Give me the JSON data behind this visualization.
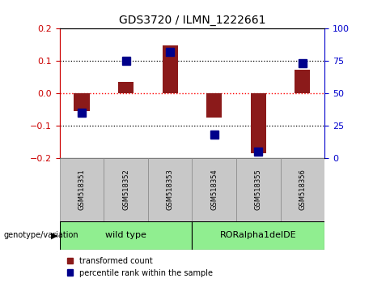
{
  "title": "GDS3720 / ILMN_1222661",
  "samples": [
    "GSM518351",
    "GSM518352",
    "GSM518353",
    "GSM518354",
    "GSM518355",
    "GSM518356"
  ],
  "red_values": [
    -0.055,
    0.035,
    0.148,
    -0.075,
    -0.185,
    0.072
  ],
  "blue_values": [
    35,
    75,
    82,
    18,
    5,
    73
  ],
  "ylim_left": [
    -0.2,
    0.2
  ],
  "ylim_right": [
    0,
    100
  ],
  "yticks_left": [
    -0.2,
    -0.1,
    0.0,
    0.1,
    0.2
  ],
  "yticks_right": [
    0,
    25,
    50,
    75,
    100
  ],
  "hlines_dotted": [
    -0.1,
    0.1
  ],
  "hline_red": 0.0,
  "group_label": "genotype/variation",
  "group1_label": "wild type",
  "group2_label": "RORalpha1delDE",
  "group1_range": [
    0,
    2
  ],
  "group2_range": [
    3,
    5
  ],
  "group_color": "#90EE90",
  "sample_box_color": "#C8C8C8",
  "legend_red": "transformed count",
  "legend_blue": "percentile rank within the sample",
  "red_color": "#8B1A1A",
  "blue_color": "#00008B",
  "bar_width": 0.35,
  "blue_marker_size": 7,
  "axis_left_color": "#CC0000",
  "axis_right_color": "#0000CC"
}
